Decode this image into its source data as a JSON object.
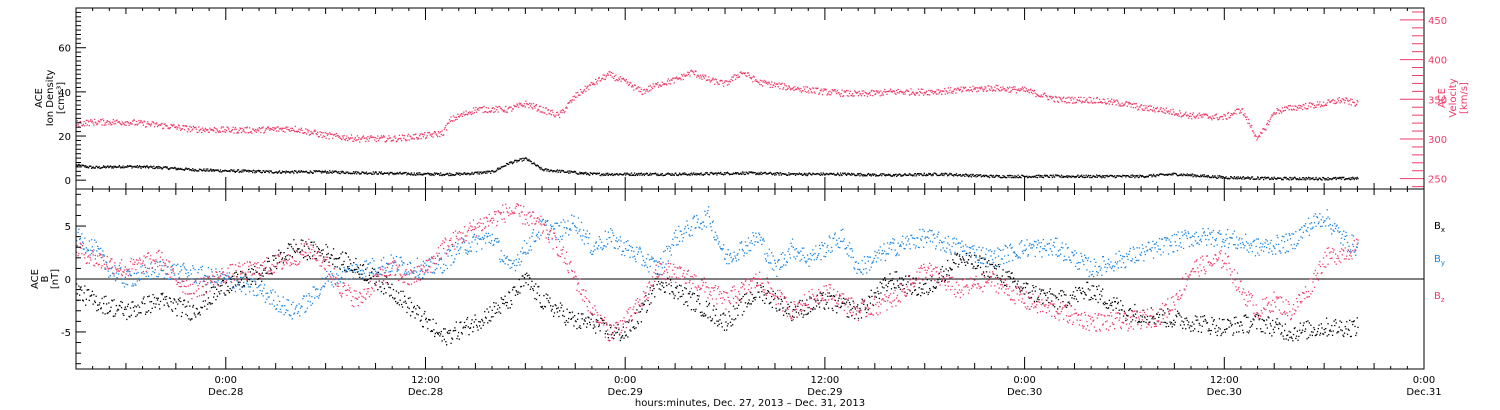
{
  "chart_data": [
    {
      "type": "scatter",
      "x_range_hours": [
        -9.0,
        72.0
      ],
      "left_axis": {
        "ylabel_lines": [
          "ACE",
          "Ion Density",
          "[cm⁻³]"
        ],
        "ylim": [
          -4,
          78
        ],
        "ticks": [
          0,
          20,
          40,
          60
        ],
        "color": "#000000"
      },
      "right_axis": {
        "ylabel_lines": [
          "ACE",
          "Velocity",
          "[km/s]"
        ],
        "ylim": [
          237,
          465
        ],
        "ticks": [
          250,
          300,
          350,
          400,
          450
        ],
        "color": "#ee3b68"
      },
      "series": [
        {
          "axis": "left",
          "color": "#000000",
          "points": [
            [
              -9,
              7
            ],
            [
              -8,
              6
            ],
            [
              -6,
              6.5
            ],
            [
              -4,
              6
            ],
            [
              -2,
              5
            ],
            [
              0,
              4.5
            ],
            [
              3,
              4
            ],
            [
              6,
              4
            ],
            [
              9,
              3.5
            ],
            [
              12,
              3
            ],
            [
              14,
              3
            ],
            [
              16,
              4
            ],
            [
              17,
              8
            ],
            [
              18,
              10
            ],
            [
              19,
              5
            ],
            [
              22,
              3
            ],
            [
              25,
              3
            ],
            [
              28,
              3
            ],
            [
              31,
              3.5
            ],
            [
              34,
              3
            ],
            [
              37,
              3
            ],
            [
              40,
              2.5
            ],
            [
              43,
              3
            ],
            [
              46,
              2
            ],
            [
              49,
              2
            ],
            [
              52,
              2
            ],
            [
              55,
              2
            ],
            [
              57,
              3
            ],
            [
              60,
              1.5
            ],
            [
              63,
              1
            ],
            [
              66,
              1
            ],
            [
              68,
              1
            ]
          ]
        },
        {
          "axis": "right",
          "color": "#ee3b68",
          "points": [
            [
              -9,
              320
            ],
            [
              -8,
              322
            ],
            [
              -6,
              322
            ],
            [
              -4,
              318
            ],
            [
              -2,
              313
            ],
            [
              0,
              312
            ],
            [
              2,
              312
            ],
            [
              4,
              314
            ],
            [
              6,
              305
            ],
            [
              8,
              301
            ],
            [
              10,
              301
            ],
            [
              12,
              305
            ],
            [
              13,
              308
            ],
            [
              13.5,
              325
            ],
            [
              15,
              338
            ],
            [
              17,
              338
            ],
            [
              18,
              345
            ],
            [
              20,
              330
            ],
            [
              21,
              355
            ],
            [
              22,
              370
            ],
            [
              23,
              382
            ],
            [
              24,
              372
            ],
            [
              25,
              360
            ],
            [
              26,
              370
            ],
            [
              27,
              375
            ],
            [
              28,
              385
            ],
            [
              29,
              375
            ],
            [
              30,
              370
            ],
            [
              31,
              385
            ],
            [
              32,
              372
            ],
            [
              34,
              365
            ],
            [
              36,
              360
            ],
            [
              38,
              357
            ],
            [
              40,
              360
            ],
            [
              42,
              360
            ],
            [
              44,
              362
            ],
            [
              46,
              365
            ],
            [
              48,
              362
            ],
            [
              50,
              350
            ],
            [
              52,
              350
            ],
            [
              54,
              345
            ],
            [
              55,
              340
            ],
            [
              56,
              338
            ],
            [
              58,
              330
            ],
            [
              60,
              328
            ],
            [
              61,
              338
            ],
            [
              62,
              300
            ],
            [
              63,
              335
            ],
            [
              64,
              340
            ],
            [
              66,
              345
            ],
            [
              67,
              350
            ],
            [
              68,
              345
            ]
          ]
        }
      ]
    },
    {
      "type": "scatter",
      "x_range_hours": [
        -9.0,
        72.0
      ],
      "left_axis": {
        "ylabel_lines": [
          "ACE",
          "B",
          "[nT]"
        ],
        "ylim": [
          -8.5,
          8.5
        ],
        "ticks": [
          -5,
          0,
          5
        ],
        "color": "#000000"
      },
      "legend_position": "right",
      "legend": [
        {
          "base": "B",
          "sub": "x",
          "color": "#000000"
        },
        {
          "base": "B",
          "sub": "y",
          "color": "#1a84e0"
        },
        {
          "base": "B",
          "sub": "z",
          "color": "#ee3b68"
        }
      ],
      "series": [
        {
          "legend_index": 0,
          "color": "#000000",
          "points": [
            [
              -9,
              -1
            ],
            [
              -8,
              -2
            ],
            [
              -6,
              -3
            ],
            [
              -4,
              -2
            ],
            [
              -2,
              -3
            ],
            [
              0,
              -0.5
            ],
            [
              2,
              0.5
            ],
            [
              4,
              3
            ],
            [
              6,
              2.5
            ],
            [
              8,
              1
            ],
            [
              10,
              -1
            ],
            [
              12,
              -4
            ],
            [
              13,
              -5.5
            ],
            [
              15,
              -4
            ],
            [
              17,
              -2
            ],
            [
              18,
              0
            ],
            [
              19,
              -2
            ],
            [
              20,
              -3
            ],
            [
              21,
              -4
            ],
            [
              22,
              -4
            ],
            [
              23,
              -5
            ],
            [
              24,
              -5
            ],
            [
              25,
              -3
            ],
            [
              26,
              0
            ],
            [
              28,
              -2
            ],
            [
              30,
              -4
            ],
            [
              32,
              -1
            ],
            [
              34,
              -3
            ],
            [
              36,
              -2
            ],
            [
              38,
              -3
            ],
            [
              40,
              0
            ],
            [
              42,
              -1
            ],
            [
              44,
              2
            ],
            [
              46,
              1
            ],
            [
              48,
              -1
            ],
            [
              50,
              -2
            ],
            [
              52,
              -1
            ],
            [
              54,
              -3
            ],
            [
              56,
              -3.5
            ],
            [
              58,
              -4
            ],
            [
              60,
              -4.5
            ],
            [
              62,
              -4
            ],
            [
              64,
              -5
            ],
            [
              66,
              -4.5
            ],
            [
              68,
              -4.5
            ]
          ]
        },
        {
          "legend_index": 1,
          "color": "#1a84e0",
          "points": [
            [
              -9,
              4
            ],
            [
              -8,
              3
            ],
            [
              -7,
              1
            ],
            [
              -6,
              0
            ],
            [
              -4,
              1
            ],
            [
              -2,
              0.5
            ],
            [
              0,
              0
            ],
            [
              2,
              -1
            ],
            [
              4,
              -3
            ],
            [
              5,
              -2
            ],
            [
              6,
              0
            ],
            [
              8,
              1
            ],
            [
              10,
              1.5
            ],
            [
              12,
              1
            ],
            [
              13,
              1.5
            ],
            [
              14,
              3
            ],
            [
              16,
              4
            ],
            [
              17,
              1
            ],
            [
              18,
              3
            ],
            [
              19,
              5
            ],
            [
              20,
              4.5
            ],
            [
              21,
              5.5
            ],
            [
              22,
              3
            ],
            [
              23,
              4
            ],
            [
              24,
              3
            ],
            [
              25,
              2
            ],
            [
              26,
              1
            ],
            [
              27,
              4
            ],
            [
              28,
              5
            ],
            [
              29,
              6
            ],
            [
              30,
              2
            ],
            [
              31,
              3
            ],
            [
              32,
              4
            ],
            [
              33,
              1
            ],
            [
              34,
              3
            ],
            [
              35,
              2
            ],
            [
              36,
              3
            ],
            [
              37,
              4
            ],
            [
              38,
              1
            ],
            [
              40,
              3
            ],
            [
              42,
              4
            ],
            [
              44,
              3
            ],
            [
              46,
              2
            ],
            [
              48,
              3
            ],
            [
              50,
              3
            ],
            [
              52,
              1
            ],
            [
              54,
              2
            ],
            [
              56,
              3
            ],
            [
              58,
              4
            ],
            [
              60,
              4
            ],
            [
              62,
              3
            ],
            [
              64,
              3.5
            ],
            [
              65,
              5
            ],
            [
              66,
              6
            ],
            [
              67,
              4
            ],
            [
              68,
              3
            ]
          ]
        },
        {
          "legend_index": 2,
          "color": "#ee3b68",
          "points": [
            [
              -9,
              3
            ],
            [
              -8,
              2
            ],
            [
              -6,
              1
            ],
            [
              -4,
              2
            ],
            [
              -3,
              0
            ],
            [
              -2,
              -1
            ],
            [
              0,
              0.5
            ],
            [
              2,
              1
            ],
            [
              4,
              2
            ],
            [
              5,
              3
            ],
            [
              6,
              1.5
            ],
            [
              7,
              -1
            ],
            [
              8,
              -2
            ],
            [
              9,
              0
            ],
            [
              10,
              1
            ],
            [
              11,
              0
            ],
            [
              12,
              1
            ],
            [
              13,
              3
            ],
            [
              15,
              5
            ],
            [
              17,
              6.5
            ],
            [
              18,
              6
            ],
            [
              19,
              5
            ],
            [
              20,
              3
            ],
            [
              21,
              0
            ],
            [
              22,
              -3
            ],
            [
              23,
              -5
            ],
            [
              24,
              -4
            ],
            [
              25,
              -2
            ],
            [
              26,
              1
            ],
            [
              28,
              0
            ],
            [
              30,
              -2
            ],
            [
              32,
              0
            ],
            [
              34,
              -3
            ],
            [
              36,
              -1
            ],
            [
              38,
              -3
            ],
            [
              40,
              -2
            ],
            [
              42,
              1
            ],
            [
              44,
              -1
            ],
            [
              46,
              0
            ],
            [
              48,
              -2
            ],
            [
              50,
              -3
            ],
            [
              52,
              -4
            ],
            [
              54,
              -4
            ],
            [
              56,
              -3.5
            ],
            [
              57,
              -2
            ],
            [
              58,
              1
            ],
            [
              60,
              2
            ],
            [
              61,
              -1
            ],
            [
              62,
              -3
            ],
            [
              63,
              -2
            ],
            [
              64,
              -3
            ],
            [
              65,
              -1
            ],
            [
              66,
              2
            ],
            [
              67,
              2.5
            ],
            [
              68,
              3
            ]
          ]
        }
      ]
    }
  ],
  "x_axis": {
    "tick_hours": [
      0,
      12,
      24,
      36,
      48,
      60,
      72
    ],
    "time_labels": [
      "0:00",
      "12:00",
      "0:00",
      "12:00",
      "0:00",
      "12:00",
      "0:00"
    ],
    "date_labels": [
      "Dec.28",
      "Dec.28",
      "Dec.29",
      "Dec.29",
      "Dec.30",
      "Dec.30",
      "Dec.31"
    ],
    "xlabel": "hours:minutes, Dec. 27, 2013 – Dec. 31, 2013"
  }
}
